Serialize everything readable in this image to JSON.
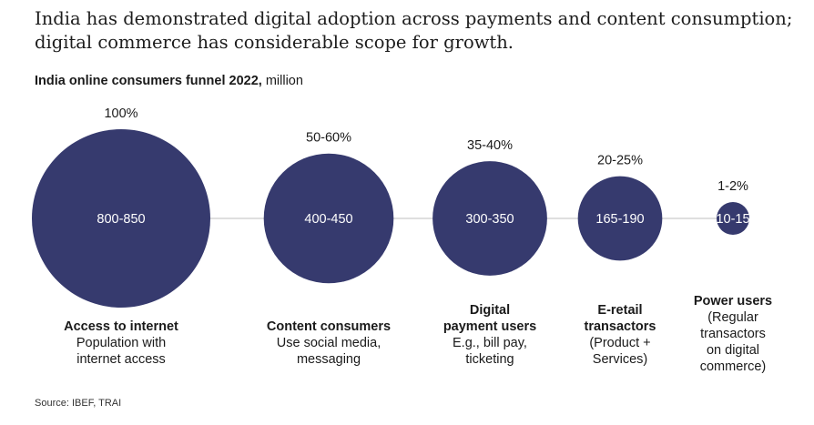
{
  "headline": "India has demonstrated digital adoption across payments and content consumption; digital commerce has considerable scope for growth.",
  "subtitle_bold": "India online consumers funnel 2022,",
  "subtitle_unit": " million",
  "colors": {
    "bubble": "#363a6e",
    "bubble_text": "#ffffff",
    "connector": "#cccccc"
  },
  "chart_data": {
    "type": "bubble-funnel",
    "title": "India online consumers funnel 2022",
    "unit": "million",
    "categories": [
      "Access to internet",
      "Content consumers",
      "Digital payment users",
      "E-retail transactors",
      "Power users"
    ],
    "share_labels": [
      "100%",
      "50-60%",
      "35-40%",
      "20-25%",
      "1-2%"
    ],
    "value_labels": [
      "800-850",
      "400-450",
      "300-350",
      "165-190",
      "10-15"
    ],
    "values_min": [
      800,
      400,
      300,
      165,
      10
    ],
    "values_max": [
      850,
      450,
      350,
      190,
      15
    ]
  },
  "stages": [
    {
      "name_lines": [
        "Access to internet"
      ],
      "desc_lines": [
        "Population with",
        "internet access"
      ]
    },
    {
      "name_lines": [
        "Content consumers"
      ],
      "desc_lines": [
        "Use social media,",
        "messaging"
      ]
    },
    {
      "name_lines": [
        "Digital",
        "payment users"
      ],
      "desc_lines": [
        "E.g., bill pay,",
        "ticketing"
      ]
    },
    {
      "name_lines": [
        "E-retail",
        "transactors"
      ],
      "desc_lines": [
        "(Product +",
        "Services)"
      ]
    },
    {
      "name_lines": [
        "Power users"
      ],
      "desc_lines": [
        "(Regular",
        "transactors",
        "on digital",
        "commerce)"
      ]
    }
  ],
  "source": "Source: IBEF, TRAI"
}
